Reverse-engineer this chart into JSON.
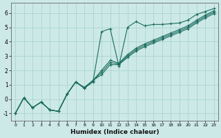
{
  "xlabel": "Humidex (Indice chaleur)",
  "background_color": "#cce9e7",
  "grid_color": "#aad4d0",
  "line_color": "#1a6b5e",
  "xlim": [
    -0.5,
    23.5
  ],
  "ylim": [
    -1.5,
    6.7
  ],
  "xticks": [
    0,
    1,
    2,
    3,
    4,
    5,
    6,
    7,
    8,
    9,
    10,
    11,
    12,
    13,
    14,
    15,
    16,
    17,
    18,
    19,
    20,
    21,
    22,
    23
  ],
  "yticks": [
    -1,
    0,
    1,
    2,
    3,
    4,
    5,
    6
  ],
  "series1_x": [
    0,
    1,
    2,
    3,
    4,
    5,
    6,
    7,
    8,
    9,
    10,
    11,
    12,
    13,
    14,
    15,
    16,
    17,
    18,
    19,
    20,
    21,
    22,
    23
  ],
  "series1_y": [
    -1.0,
    0.1,
    -0.6,
    -0.2,
    -0.75,
    -0.85,
    0.35,
    1.2,
    0.75,
    1.2,
    4.7,
    4.9,
    2.3,
    5.0,
    5.4,
    5.1,
    5.2,
    5.2,
    5.25,
    5.3,
    5.5,
    5.9,
    6.1,
    6.3
  ],
  "series2_x": [
    0,
    1,
    2,
    3,
    4,
    5,
    6,
    7,
    8,
    9,
    10,
    11,
    12,
    13,
    14,
    15,
    16,
    17,
    18,
    19,
    20,
    21,
    22,
    23
  ],
  "series2_y": [
    -1.0,
    0.1,
    -0.6,
    -0.2,
    -0.75,
    -0.85,
    0.35,
    1.2,
    0.8,
    1.3,
    2.0,
    2.7,
    2.5,
    3.1,
    3.55,
    3.85,
    4.1,
    4.35,
    4.6,
    4.85,
    5.1,
    5.5,
    5.85,
    6.15
  ],
  "series3_x": [
    0,
    1,
    2,
    3,
    4,
    5,
    6,
    7,
    8,
    9,
    10,
    11,
    12,
    13,
    14,
    15,
    16,
    17,
    18,
    19,
    20,
    21,
    22,
    23
  ],
  "series3_y": [
    -1.0,
    0.1,
    -0.6,
    -0.2,
    -0.75,
    -0.85,
    0.35,
    1.2,
    0.8,
    1.3,
    1.85,
    2.55,
    2.45,
    3.0,
    3.45,
    3.75,
    4.0,
    4.25,
    4.5,
    4.75,
    5.0,
    5.4,
    5.75,
    6.05
  ],
  "series4_x": [
    0,
    1,
    2,
    3,
    4,
    5,
    6,
    7,
    8,
    9,
    10,
    11,
    12,
    13,
    14,
    15,
    16,
    17,
    18,
    19,
    20,
    21,
    22,
    23
  ],
  "series4_y": [
    -1.0,
    0.1,
    -0.6,
    -0.2,
    -0.75,
    -0.85,
    0.35,
    1.2,
    0.8,
    1.3,
    1.7,
    2.4,
    2.4,
    2.9,
    3.35,
    3.65,
    3.9,
    4.15,
    4.4,
    4.65,
    4.9,
    5.3,
    5.65,
    5.95
  ]
}
